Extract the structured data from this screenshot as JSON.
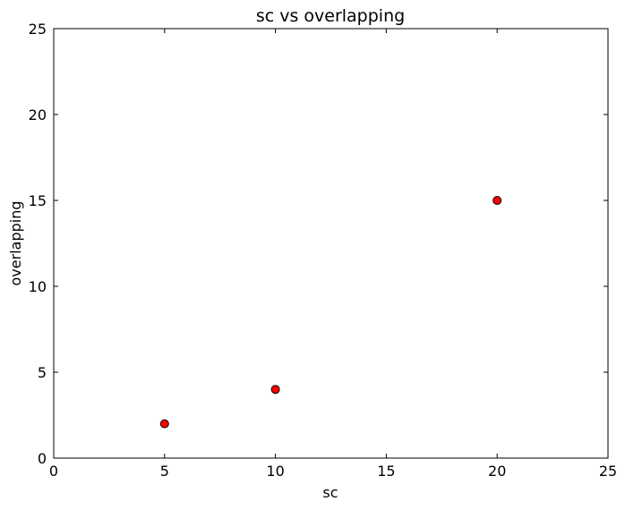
{
  "chart_data": {
    "type": "scatter",
    "title": "sc vs overlapping",
    "xlabel": "sc",
    "ylabel": "overlapping",
    "xlim": [
      0,
      25
    ],
    "ylim": [
      0,
      25
    ],
    "xticks": [
      0,
      5,
      10,
      15,
      20,
      25
    ],
    "yticks": [
      0,
      5,
      10,
      15,
      20,
      25
    ],
    "grid": false,
    "series": [
      {
        "marker": "circle",
        "color": "#ff0000",
        "edge_color": "#000000",
        "points": [
          {
            "x": 5,
            "y": 2
          },
          {
            "x": 10,
            "y": 4
          },
          {
            "x": 20,
            "y": 15
          }
        ]
      }
    ]
  }
}
